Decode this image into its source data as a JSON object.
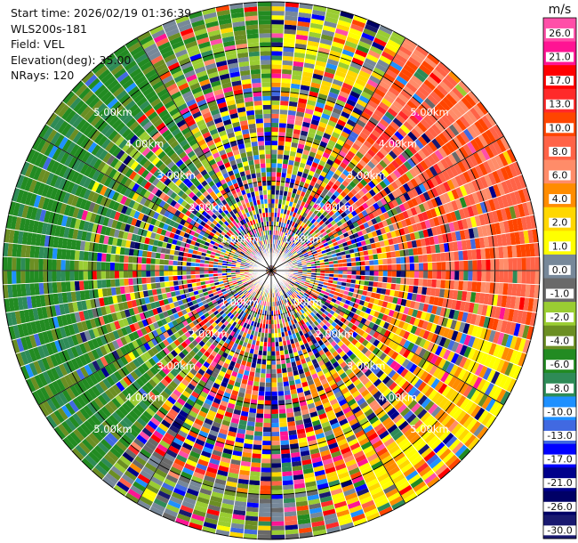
{
  "info": {
    "start_time": "Start time: 2026/02/19 01:36:39",
    "instrument": "WLS200s-181",
    "field": "Field: VEL",
    "elevation": "Elevation(deg): 35.00",
    "nrays": "NRays: 120"
  },
  "chart_data": {
    "type": "heatmap",
    "projection": "polar-ppi",
    "field": "VEL",
    "units": "m/s",
    "elevation_deg": 35.0,
    "n_rays": 120,
    "range_rings_km": [
      1.0,
      2.0,
      3.0,
      4.0,
      5.0
    ],
    "ring_labels": [
      "1.00km",
      "2.00km",
      "3.00km",
      "4.00km",
      "5.00km"
    ],
    "max_range_km": 6.0,
    "colorbar": {
      "unit": "m/s",
      "ticks": [
        "26.0",
        "21.0",
        "17.0",
        "13.0",
        "10.0",
        "8.0",
        "6.0",
        "4.0",
        "2.0",
        "1.0",
        "0.0",
        "-1.0",
        "-2.0",
        "-4.0",
        "-6.0",
        "-8.0",
        "-10.0",
        "-13.0",
        "-17.0",
        "-21.0",
        "-26.0",
        "-30.0"
      ],
      "colors": [
        "#ff4fa8",
        "#ff1493",
        "#ff0000",
        "#ff2a2a",
        "#ff4500",
        "#ff6347",
        "#ff8c69",
        "#ff8c00",
        "#ffd700",
        "#ffff00",
        "#778899",
        "#696969",
        "#9acd32",
        "#6b8e23",
        "#228b22",
        "#2e8b57",
        "#1e90ff",
        "#4169e1",
        "#0000ff",
        "#00008b",
        "#000066",
        "#191970"
      ]
    },
    "sectors": [
      {
        "from_deg": 0,
        "to_deg": 30,
        "pattern": "noisy"
      },
      {
        "from_deg": 30,
        "to_deg": 105,
        "pattern": "positive (6 to 10 m/s, orange/red) beyond 3 km"
      },
      {
        "from_deg": 105,
        "to_deg": 165,
        "pattern": "noisy, yellow near edge"
      },
      {
        "from_deg": 165,
        "to_deg": 220,
        "pattern": "noisy, gray/olive near edge"
      },
      {
        "from_deg": 220,
        "to_deg": 330,
        "pattern": "negative (-6 to -8 m/s, green) beyond 3 km"
      },
      {
        "from_deg": 330,
        "to_deg": 360,
        "pattern": "olive/yellow mix"
      }
    ]
  }
}
